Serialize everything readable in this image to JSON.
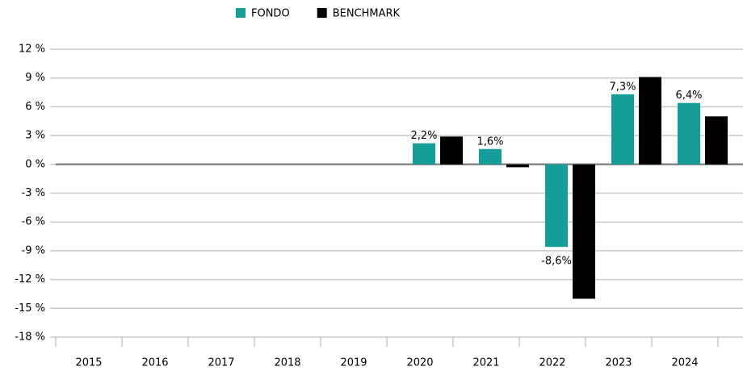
{
  "chart_data": {
    "type": "bar",
    "categories": [
      "2015",
      "2016",
      "2017",
      "2018",
      "2019",
      "2020",
      "2021",
      "2022",
      "2023",
      "2024"
    ],
    "series": [
      {
        "name": "FONDO",
        "color": "#159e99",
        "values": [
          null,
          null,
          null,
          null,
          null,
          2.2,
          1.6,
          -8.6,
          7.3,
          6.4
        ],
        "value_labels": [
          null,
          null,
          null,
          null,
          null,
          "2,2%",
          "1,6%",
          "-8,6%",
          "7,3%",
          "6,4%"
        ]
      },
      {
        "name": "BENCHMARK",
        "color": "#000000",
        "values": [
          null,
          null,
          null,
          null,
          null,
          2.9,
          -0.3,
          -14,
          9.1,
          5.0
        ]
      }
    ],
    "ylim": [
      -18,
      12
    ],
    "yticks": [
      {
        "value": 12,
        "label": "12 %"
      },
      {
        "value": 9,
        "label": "9 %"
      },
      {
        "value": 6,
        "label": "6 %"
      },
      {
        "value": 3,
        "label": "3 %"
      },
      {
        "value": 0,
        "label": "0 %"
      },
      {
        "value": -3,
        "label": "-3 %"
      },
      {
        "value": -6,
        "label": "-6 %"
      },
      {
        "value": -9,
        "label": "-9 %"
      },
      {
        "value": -12,
        "label": "-12 %"
      },
      {
        "value": -15,
        "label": "-15 %"
      },
      {
        "value": -18,
        "label": "-18 %"
      }
    ],
    "grid": true,
    "legend": "top"
  }
}
